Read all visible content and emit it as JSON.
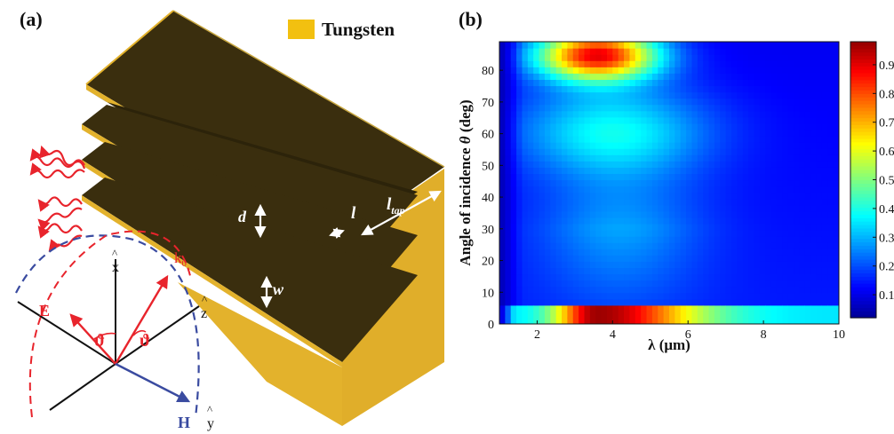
{
  "panel_a": {
    "label": "(a)",
    "legend_label": "Tungsten",
    "legend_color": "#F2C010",
    "dark_color": "#3A2E0E",
    "gold_color": "#E3B22C",
    "wave_color": "#E8242C",
    "dims": {
      "d": "d",
      "l": "l",
      "l_tap_main": "l",
      "l_tap_sub": "tap",
      "w": "w"
    },
    "axes": {
      "x": "x",
      "z": "z",
      "y": "y",
      "hat": "^",
      "k": "k",
      "k_sub": "0",
      "E": "E",
      "H": "H",
      "theta": "ϑ"
    }
  },
  "panel_b": {
    "label": "(b)",
    "xlabel": "λ (μm)",
    "ylabel_main": "Angle of incidence ",
    "ylabel_theta": "θ",
    "ylabel_unit": " (deg)",
    "xticks": [
      "2",
      "4",
      "6",
      "8",
      "10"
    ],
    "yticks": [
      "0",
      "10",
      "20",
      "30",
      "40",
      "50",
      "60",
      "70",
      "80"
    ],
    "cbticks": [
      "0.1",
      "0.2",
      "0.3",
      "0.4",
      "0.5",
      "0.6",
      "0.7",
      "0.8",
      "0.9"
    ]
  },
  "chart_data": {
    "type": "heatmap",
    "title": "",
    "xlabel": "λ (μm)",
    "ylabel": "Angle of incidence θ (deg)",
    "xlim": [
      1,
      10
    ],
    "ylim": [
      0,
      89
    ],
    "colorbar": {
      "ticks": [
        0.1,
        0.2,
        0.3,
        0.4,
        0.5,
        0.6,
        0.7,
        0.8,
        0.9
      ],
      "range": [
        0.02,
        0.98
      ],
      "colormap": "jet"
    },
    "features": [
      {
        "region": "peak",
        "lambda": 3.6,
        "theta": 85,
        "value": 0.97
      },
      {
        "region": "normal incidence band",
        "theta": 3,
        "lambda_peak": 3.6,
        "value_at_peak": 0.97,
        "value_at_lambda_10": 0.35
      },
      {
        "region": "minimum valley",
        "lambda": 4.2,
        "theta": 20,
        "value": 0.3
      },
      {
        "region": "short wavelength edge",
        "lambda": 1.1,
        "value": 0.05
      },
      {
        "region": "long wavelength background",
        "lambda": 9,
        "theta": 40,
        "value": 0.15
      }
    ]
  }
}
